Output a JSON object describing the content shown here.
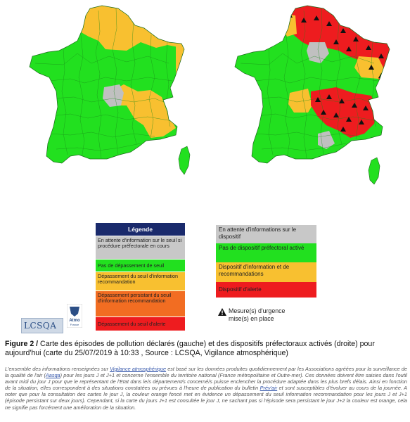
{
  "colors": {
    "green": "#22e01f",
    "orange": "#f8c030",
    "red": "#ee1c1f",
    "grey": "#c0c0c0",
    "legend_header": "#1a2a6c",
    "persistent_orange": "#f26d22"
  },
  "maps": {
    "left": {
      "description_icon": "france-map-left"
    },
    "right": {
      "description_icon": "france-map-right"
    }
  },
  "legend_left": {
    "header": "Légende",
    "items": [
      {
        "text": "En attente d'information sur le seuil si procédure préfectorale en cours",
        "color": "#c0c0c0"
      },
      {
        "text": "Pas de dépassement de seuil",
        "color": "#22e01f"
      },
      {
        "text": "Dépassement du seuil d'information recommandation",
        "color": "#f8c030"
      },
      {
        "text": "Dépassement persistant du seuil d'information recommandation",
        "color": "#f26d22"
      },
      {
        "text": "Dépassement du seuil d'alerte",
        "color": "#ee1c1f"
      }
    ]
  },
  "legend_right": {
    "items": [
      {
        "text": "En attente d'informations sur le dispositif",
        "color": "#c0c0c0"
      },
      {
        "text": "Pas de dispositif préfectoral activé",
        "color": "#22e01f"
      },
      {
        "text": "Dispositif d'information et de recommandations",
        "color": "#f8c030"
      },
      {
        "text": "Dispositif d'alerte",
        "color": "#ee1c1f"
      }
    ],
    "measure_line1": "Mesure(s) d'urgence",
    "measure_line2": "mise(s) en place"
  },
  "logos": {
    "lcsqa": "LCSQA",
    "atmo": "Atmo",
    "atmo_sub": "France"
  },
  "caption": {
    "figure_label": "Figure 2 / ",
    "text": "Carte des épisodes de pollution déclarés (gauche) et des dispositifs préfectoraux activés (droite) pour aujourd'hui (carte du 25/07/2019 à 10:33 , Source : LCSQA, Vigilance atmosphérique)"
  },
  "note": {
    "p1": "L'ensemble des informations renseignées sur ",
    "link": "Vigilance atmosphérique",
    "p2": " est basé sur les données produites quotidiennement par les Associations agréées pour la surveillance de la qualité de l'air (",
    "aasqa": "Aasqa",
    "p3": ") pour les jours J et J+1 et concerne l'ensemble du territoire national (France métropolitaine et Outre-mer). Ces données doivent être saisies dans l'outil avant midi du jour J pour que le représentant de l'Etat dans le/s département/s concerné/s puisse enclencher la procédure adaptée dans les plus brefs délais. Ainsi en fonction de la situation, elles correspondent à des situations constatées ou prévues à l'heure de publication du bulletin ",
    "prevair": "Prév'air",
    "p4": " et sont susceptibles d'évoluer au cours de la journée. A noter que pour la consultation des cartes le jour J, la couleur orange foncé met en évidence un dépassement du seuil information recommandation pour les jours J et J+1 (épisode persistant sur deux jours). Cependant, si la carte du jours J+1 est consultée le jour J, ne sachant pas si l'épisode sera persistant le jour J+2 la couleur est orange, cela ne signifie pas forcément une amélioration de la situation."
  }
}
